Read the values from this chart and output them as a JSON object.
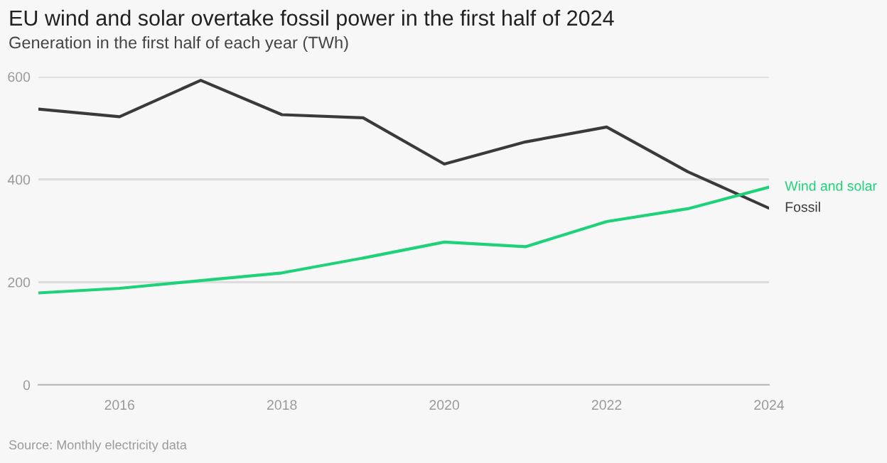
{
  "chart_data": {
    "type": "line",
    "title": "EU wind and solar overtake fossil power in the first half of 2024",
    "subtitle": "Generation in the first half of each year (TWh)",
    "x": [
      2015,
      2016,
      2017,
      2018,
      2019,
      2020,
      2021,
      2022,
      2023,
      2024
    ],
    "series": [
      {
        "name": "Fossil",
        "color": "#3a3a3a",
        "values": [
          537,
          522,
          593,
          526,
          520,
          430,
          473,
          502,
          415,
          344
        ]
      },
      {
        "name": "Wind and solar",
        "color": "#1ed27a",
        "values": [
          179,
          188,
          203,
          218,
          247,
          278,
          269,
          318,
          343,
          385
        ]
      }
    ],
    "xlim": [
      2015,
      2024
    ],
    "xticks": [
      2016,
      2018,
      2020,
      2022,
      2024
    ],
    "ylim": [
      0,
      600
    ],
    "yticks": [
      0,
      200,
      400,
      600
    ],
    "grid": "y",
    "legend": false,
    "marker": "none",
    "line_style": "solid",
    "annotations": [
      "Source: Monthly electricity data"
    ]
  }
}
